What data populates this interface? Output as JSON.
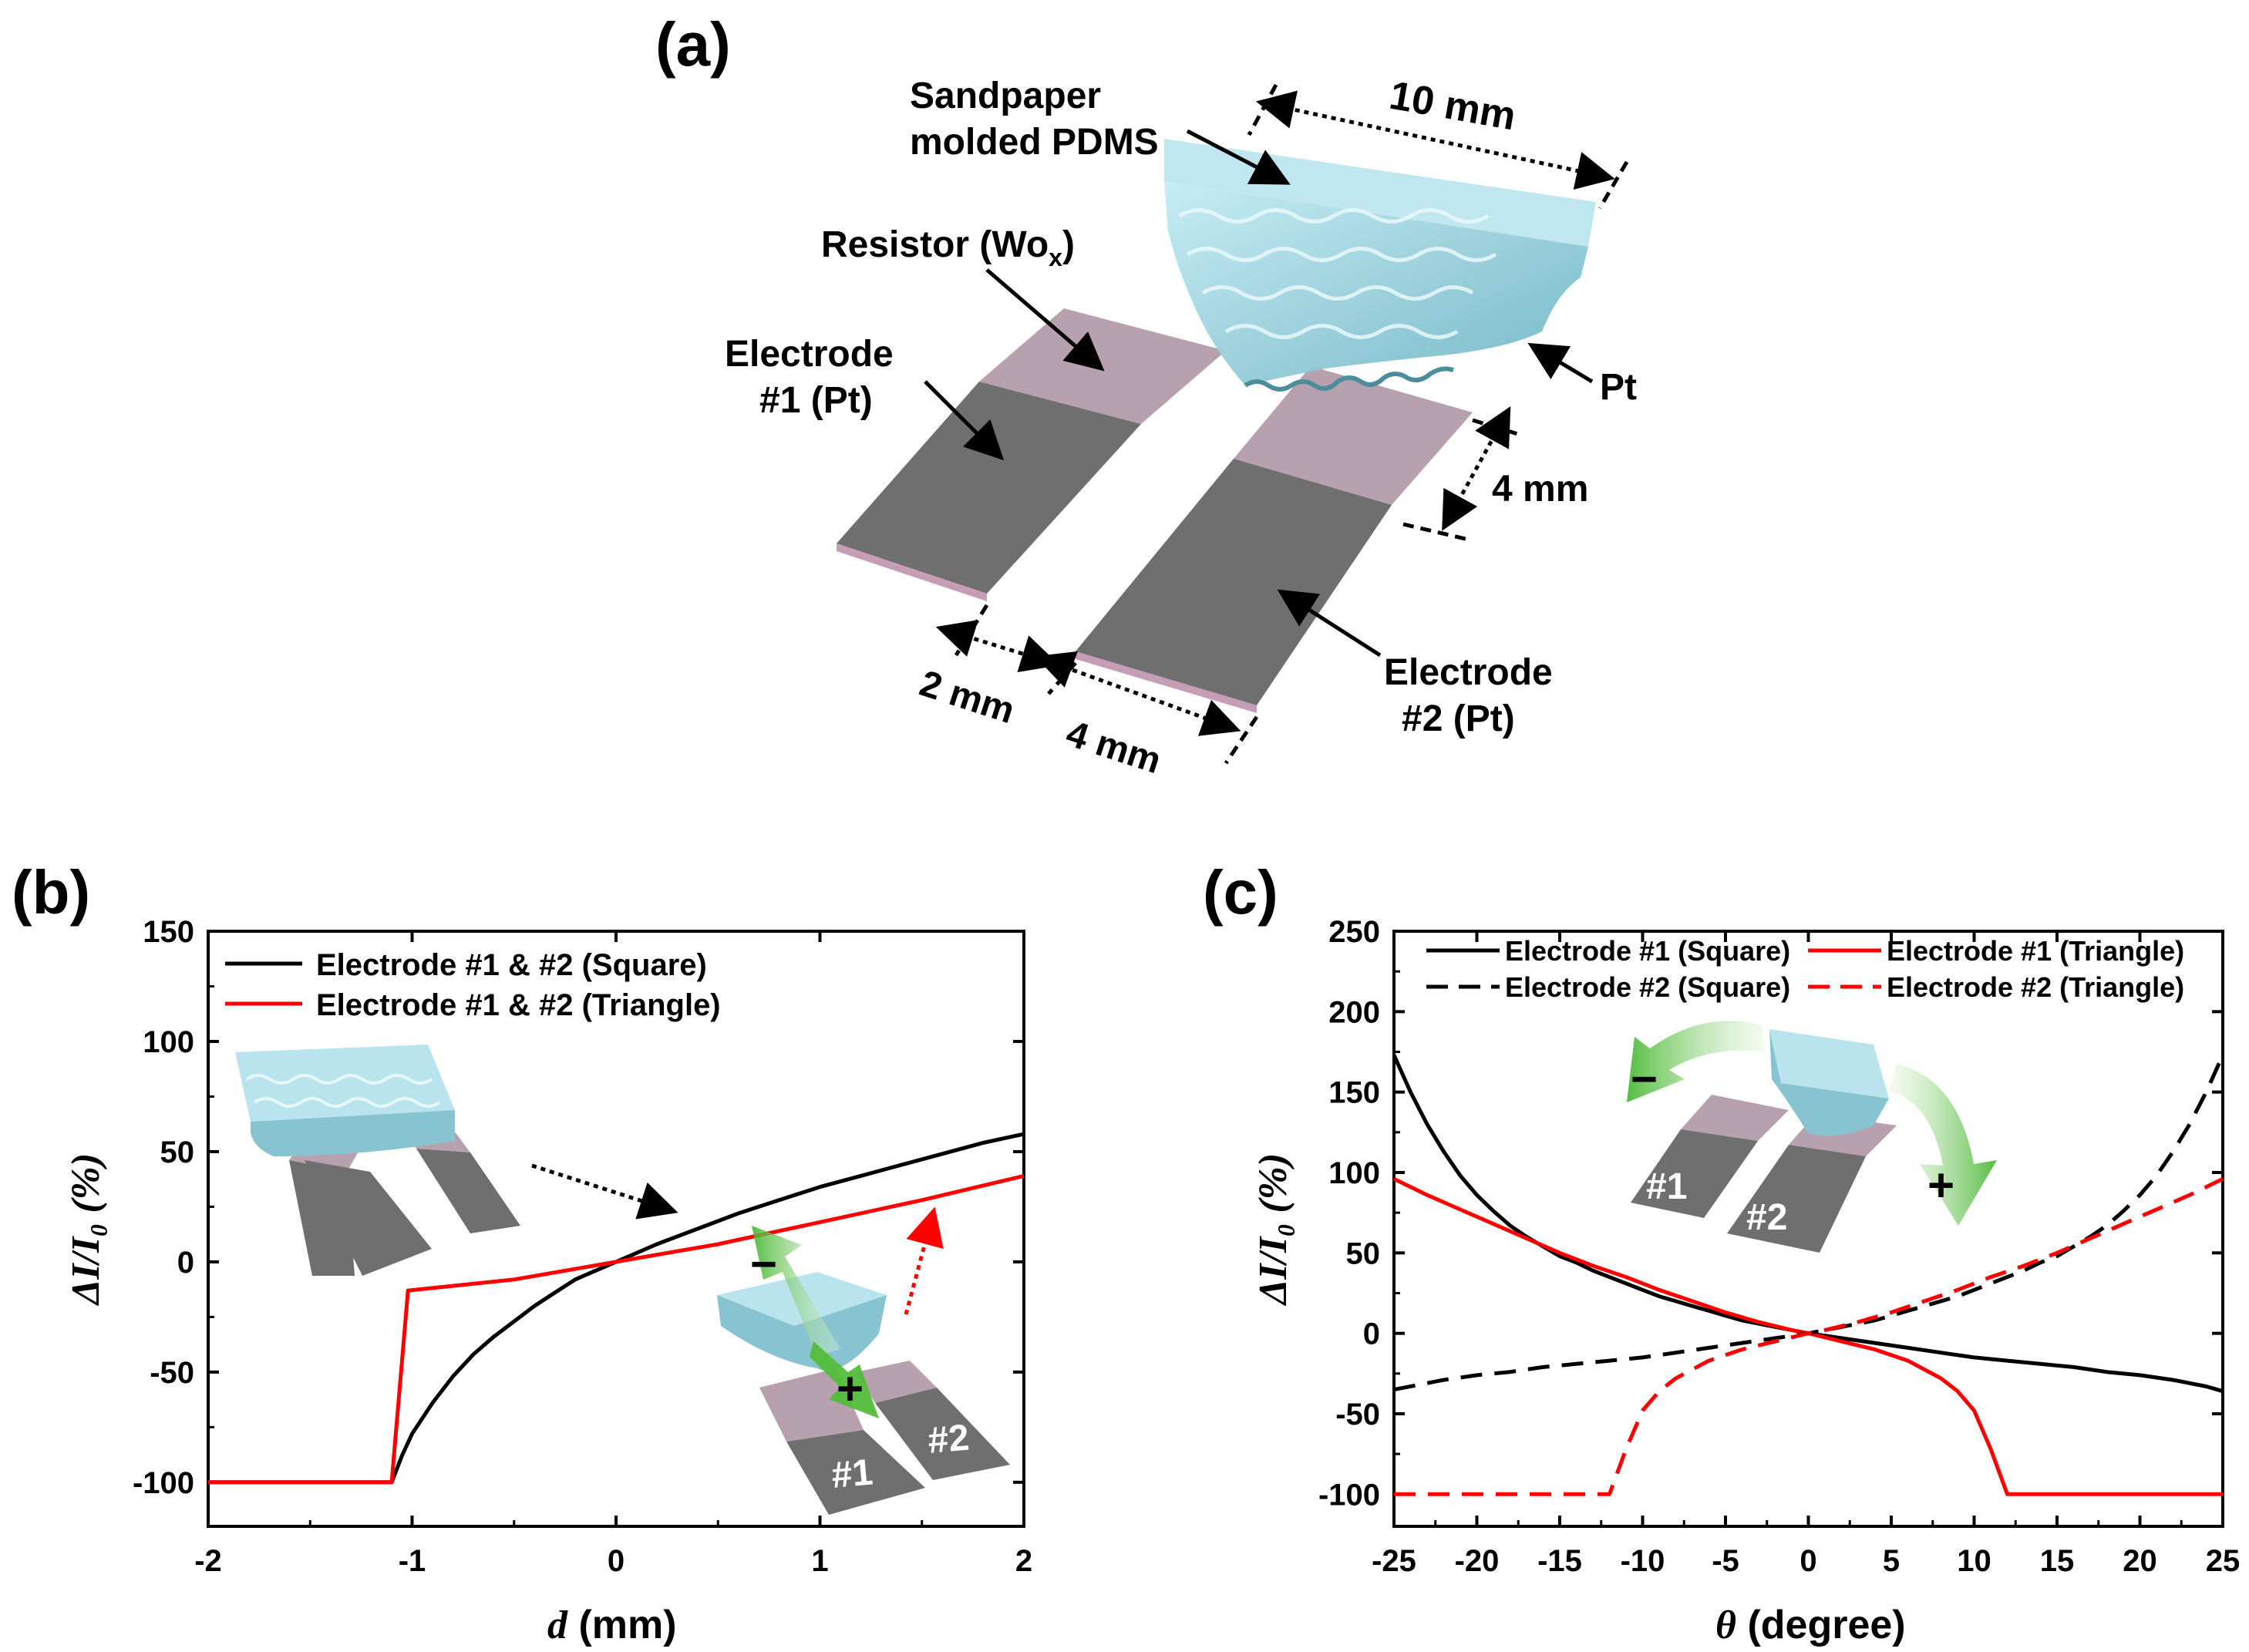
{
  "figure": {
    "panel_a": {
      "label": "(a)",
      "labels": {
        "pdms": [
          "Sandpaper",
          "molded PDMS"
        ],
        "resistor_main": "Resistor (Wo",
        "resistor_sub": "x",
        "resistor_close": ")",
        "electrode1": [
          "Electrode",
          "#1 (Pt)"
        ],
        "electrode2": [
          "Electrode",
          "#2 (Pt)"
        ],
        "pt": "Pt"
      },
      "dimensions": {
        "width_pdms": "10  mm",
        "width_electrode": "4 mm",
        "gap": "2 mm",
        "length": "4 mm"
      }
    },
    "colors": {
      "electrode": "#6f6f6f",
      "resistor": "#b7a1ae",
      "pdms": "#9ed3df",
      "arrow_green": "#57c23f",
      "black_series": "#000000",
      "red_series": "#ff0000"
    }
  },
  "chart_data": [
    {
      "panel": "(b)",
      "type": "line",
      "xlabel_italic": "d",
      "xlabel_rest": " (mm)",
      "ylabel": "ΔI/I₀ (%)",
      "xlim": [
        -2,
        2
      ],
      "ylim": [
        -120,
        150
      ],
      "xticks": [
        -2,
        -1,
        0,
        1,
        2
      ],
      "yticks": [
        -100,
        -50,
        0,
        50,
        100,
        150
      ],
      "legend_position": "top-left",
      "inset_labels": {
        "minus": "−",
        "plus": "+",
        "e1": "#1",
        "e2": "#2"
      },
      "series": [
        {
          "name": "Electrode #1 & #2 (Square)",
          "color": "#000000",
          "dash": "solid",
          "points": [
            [
              -2,
              -100
            ],
            [
              -1.1,
              -100
            ],
            [
              -1.05,
              -88
            ],
            [
              -1.0,
              -78
            ],
            [
              -0.9,
              -64
            ],
            [
              -0.8,
              -52
            ],
            [
              -0.7,
              -42
            ],
            [
              -0.6,
              -34
            ],
            [
              -0.5,
              -27
            ],
            [
              -0.4,
              -20
            ],
            [
              -0.3,
              -14
            ],
            [
              -0.2,
              -8
            ],
            [
              -0.1,
              -4
            ],
            [
              0,
              0
            ],
            [
              0.2,
              8
            ],
            [
              0.4,
              15
            ],
            [
              0.6,
              22
            ],
            [
              0.8,
              28
            ],
            [
              1.0,
              34
            ],
            [
              1.2,
              39
            ],
            [
              1.4,
              44
            ],
            [
              1.6,
              49
            ],
            [
              1.8,
              54
            ],
            [
              2.0,
              58
            ]
          ]
        },
        {
          "name": "Electrode #1 & #2 (Triangle)",
          "color": "#ff0000",
          "dash": "solid",
          "points": [
            [
              -2,
              -100
            ],
            [
              -1.1,
              -100
            ],
            [
              -1.02,
              -13
            ],
            [
              -0.5,
              -8
            ],
            [
              0,
              0
            ],
            [
              0.5,
              8
            ],
            [
              1.0,
              18
            ],
            [
              1.5,
              28
            ],
            [
              2.0,
              39
            ]
          ]
        }
      ]
    },
    {
      "panel": "(c)",
      "type": "line",
      "xlabel_italic": "θ",
      "xlabel_rest": " (degree)",
      "ylabel": "ΔI/I₀ (%)",
      "xlim": [
        -25,
        25
      ],
      "ylim": [
        -120,
        250
      ],
      "xticks": [
        -25,
        -20,
        -15,
        -10,
        -5,
        0,
        5,
        10,
        15,
        20,
        25
      ],
      "yticks": [
        -100,
        -50,
        0,
        50,
        100,
        150,
        200,
        250
      ],
      "legend_position": "top",
      "inset_labels": {
        "minus": "−",
        "plus": "+",
        "e1": "#1",
        "e2": "#2"
      },
      "series": [
        {
          "name": "Electrode #1 (Square)",
          "color": "#000000",
          "dash": "solid",
          "points": [
            [
              -25,
              173
            ],
            [
              -24,
              150
            ],
            [
              -23,
              130
            ],
            [
              -22,
              113
            ],
            [
              -21,
              98
            ],
            [
              -20,
              86
            ],
            [
              -19,
              76
            ],
            [
              -18,
              67
            ],
            [
              -17,
              60
            ],
            [
              -16,
              54
            ],
            [
              -15,
              48
            ],
            [
              -14,
              44
            ],
            [
              -13,
              39
            ],
            [
              -12,
              35
            ],
            [
              -11,
              31
            ],
            [
              -10,
              27
            ],
            [
              -9,
              23
            ],
            [
              -8,
              20
            ],
            [
              -7,
              17
            ],
            [
              -6,
              14
            ],
            [
              -5,
              11
            ],
            [
              -4,
              8
            ],
            [
              -3,
              6
            ],
            [
              -2,
              4
            ],
            [
              -1,
              2
            ],
            [
              0,
              0
            ],
            [
              2,
              -3
            ],
            [
              4,
              -6
            ],
            [
              6,
              -9
            ],
            [
              8,
              -12
            ],
            [
              10,
              -15
            ],
            [
              12,
              -17
            ],
            [
              14,
              -19
            ],
            [
              16,
              -21
            ],
            [
              18,
              -24
            ],
            [
              20,
              -26
            ],
            [
              22,
              -29
            ],
            [
              24,
              -33
            ],
            [
              25,
              -36
            ]
          ]
        },
        {
          "name": "Electrode #1 (Triangle)",
          "color": "#ff0000",
          "dash": "solid",
          "points": [
            [
              -25,
              96
            ],
            [
              -23,
              86
            ],
            [
              -21,
              77
            ],
            [
              -19,
              68
            ],
            [
              -17,
              59
            ],
            [
              -15,
              50
            ],
            [
              -13,
              42
            ],
            [
              -11,
              35
            ],
            [
              -9,
              27
            ],
            [
              -7,
              20
            ],
            [
              -5,
              13
            ],
            [
              -3,
              7
            ],
            [
              -1,
              2
            ],
            [
              0,
              0
            ],
            [
              2,
              -5
            ],
            [
              4,
              -10
            ],
            [
              6,
              -17
            ],
            [
              8,
              -28
            ],
            [
              9,
              -36
            ],
            [
              10,
              -48
            ],
            [
              11,
              -72
            ],
            [
              12,
              -100
            ],
            [
              25,
              -100
            ]
          ]
        },
        {
          "name": "Electrode #2 (Square)",
          "color": "#000000",
          "dash": "dash",
          "points": [
            [
              -25,
              -35
            ],
            [
              -22,
              -29
            ],
            [
              -20,
              -26
            ],
            [
              -18,
              -24
            ],
            [
              -16,
              -21
            ],
            [
              -14,
              -19
            ],
            [
              -12,
              -17
            ],
            [
              -10,
              -15
            ],
            [
              -8,
              -12
            ],
            [
              -6,
              -9
            ],
            [
              -4,
              -6
            ],
            [
              -2,
              -3
            ],
            [
              0,
              0
            ],
            [
              1,
              2
            ],
            [
              2,
              4
            ],
            [
              3,
              6
            ],
            [
              4,
              8
            ],
            [
              5,
              11
            ],
            [
              6,
              14
            ],
            [
              7,
              17
            ],
            [
              8,
              20
            ],
            [
              9,
              23
            ],
            [
              10,
              27
            ],
            [
              11,
              31
            ],
            [
              12,
              35
            ],
            [
              13,
              39
            ],
            [
              14,
              44
            ],
            [
              15,
              48
            ],
            [
              16,
              54
            ],
            [
              17,
              60
            ],
            [
              18,
              67
            ],
            [
              19,
              76
            ],
            [
              20,
              86
            ],
            [
              21,
              98
            ],
            [
              22,
              113
            ],
            [
              23,
              130
            ],
            [
              24,
              150
            ],
            [
              25,
              173
            ]
          ]
        },
        {
          "name": "Electrode #2 (Triangle)",
          "color": "#ff0000",
          "dash": "dash",
          "points": [
            [
              -25,
              -100
            ],
            [
              -12,
              -100
            ],
            [
              -11,
              -72
            ],
            [
              -10,
              -48
            ],
            [
              -9,
              -36
            ],
            [
              -8,
              -28
            ],
            [
              -6,
              -17
            ],
            [
              -4,
              -10
            ],
            [
              -2,
              -5
            ],
            [
              0,
              0
            ],
            [
              1,
              2
            ],
            [
              3,
              7
            ],
            [
              5,
              13
            ],
            [
              7,
              20
            ],
            [
              9,
              27
            ],
            [
              11,
              35
            ],
            [
              13,
              42
            ],
            [
              15,
              50
            ],
            [
              17,
              59
            ],
            [
              19,
              68
            ],
            [
              21,
              77
            ],
            [
              23,
              86
            ],
            [
              25,
              96
            ]
          ]
        }
      ]
    }
  ]
}
